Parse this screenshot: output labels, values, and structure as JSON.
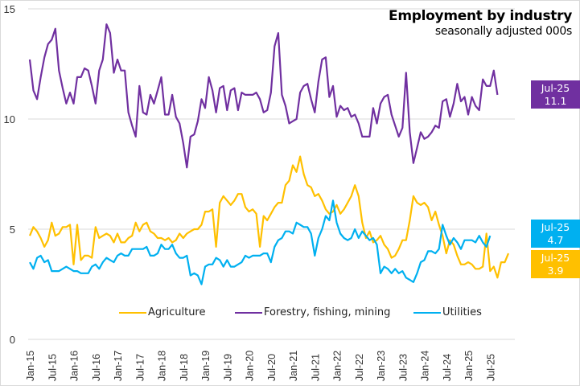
{
  "chart_data": {
    "type": "line",
    "title": "Employment by industry",
    "subtitle": "seasonally adjusted 000s",
    "xlabel": "",
    "ylabel": "",
    "ylim": [
      0,
      15
    ],
    "yticks": [
      0,
      5,
      10,
      15
    ],
    "grid": true,
    "legend_position": "bottom",
    "x_start": "Jan-15",
    "x_end": "Jul-25",
    "xtick_labels": [
      "Jan-15",
      "Jul-15",
      "Jan-16",
      "Jul-16",
      "Jan-17",
      "Jul-17",
      "Jan-18",
      "Jul-18",
      "Jan-19",
      "Jul-19",
      "Jan-20",
      "Jul-20",
      "Jan-21",
      "Jul-21",
      "Jan-22",
      "Jul-22",
      "Jan-23",
      "Jul-23",
      "Jan-24",
      "Jul-24",
      "Jan-25",
      "Jul-25"
    ],
    "series": [
      {
        "name": "Agriculture",
        "color": "#FFC000",
        "values": [
          4.7,
          5.1,
          4.9,
          4.6,
          4.2,
          4.5,
          5.3,
          4.7,
          4.8,
          5.1,
          5.1,
          5.2,
          3.4,
          5.2,
          3.6,
          3.8,
          3.8,
          3.7,
          5.1,
          4.6,
          4.7,
          4.8,
          4.7,
          4.4,
          4.8,
          4.4,
          4.4,
          4.6,
          4.7,
          5.3,
          4.9,
          5.2,
          5.3,
          4.9,
          4.8,
          4.6,
          4.6,
          4.5,
          4.6,
          4.4,
          4.5,
          4.8,
          4.6,
          4.8,
          4.9,
          5.0,
          5.0,
          5.2,
          5.8,
          5.8,
          5.9,
          4.2,
          6.2,
          6.5,
          6.3,
          6.1,
          6.3,
          6.6,
          6.6,
          6.0,
          5.8,
          5.9,
          5.7,
          4.2,
          5.6,
          5.4,
          5.7,
          6.0,
          6.2,
          6.2,
          7.0,
          7.2,
          7.9,
          7.6,
          8.3,
          7.5,
          7.0,
          6.9,
          6.5,
          6.6,
          6.3,
          5.9,
          5.7,
          5.8,
          6.1,
          5.7,
          5.9,
          6.2,
          6.5,
          7.0,
          6.5,
          5.3,
          4.6,
          4.9,
          4.4,
          4.5,
          4.7,
          4.3,
          4.1,
          3.7,
          3.8,
          4.1,
          4.5,
          4.5,
          5.4,
          6.5,
          6.2,
          6.1,
          6.2,
          6.0,
          5.4,
          5.8,
          5.2,
          4.7,
          3.9,
          4.5,
          4.3,
          3.8,
          3.4,
          3.4,
          3.5,
          3.4,
          3.2,
          3.2,
          3.3,
          4.8,
          3.1,
          3.3,
          2.8,
          3.5,
          3.5,
          3.9
        ]
      },
      {
        "name": "Forestry, fishing, mining",
        "color": "#7030A0",
        "values": [
          12.7,
          11.3,
          10.9,
          11.9,
          12.8,
          13.4,
          13.6,
          14.1,
          12.2,
          11.4,
          10.7,
          11.2,
          10.7,
          11.9,
          11.9,
          12.3,
          12.2,
          11.5,
          10.7,
          12.2,
          12.7,
          14.3,
          13.9,
          12.1,
          12.7,
          12.2,
          12.2,
          10.3,
          9.7,
          9.2,
          11.5,
          10.3,
          10.2,
          11.1,
          10.7,
          11.3,
          11.9,
          10.2,
          10.2,
          11.1,
          10.1,
          9.8,
          8.9,
          7.8,
          9.2,
          9.3,
          9.9,
          10.9,
          10.5,
          11.9,
          11.3,
          10.3,
          11.4,
          11.5,
          10.4,
          11.3,
          11.4,
          10.4,
          11.2,
          11.1,
          11.1,
          11.1,
          11.2,
          10.9,
          10.3,
          10.4,
          11.2,
          13.3,
          13.9,
          11.1,
          10.6,
          9.8,
          9.9,
          10.0,
          11.2,
          11.5,
          11.6,
          10.9,
          10.3,
          11.7,
          12.7,
          12.8,
          11.0,
          11.5,
          10.1,
          10.6,
          10.4,
          10.5,
          10.1,
          10.2,
          9.8,
          9.2,
          9.2,
          9.2,
          10.5,
          9.8,
          10.7,
          11.0,
          11.1,
          10.2,
          9.7,
          9.2,
          9.6,
          12.1,
          9.4,
          8.0,
          8.7,
          9.4,
          9.1,
          9.2,
          9.4,
          9.7,
          9.6,
          10.8,
          10.9,
          10.1,
          10.7,
          11.6,
          10.8,
          11.0,
          10.2,
          11.0,
          10.6,
          10.4,
          11.8,
          11.5,
          11.5,
          12.2,
          11.1
        ]
      },
      {
        "name": "Utilities",
        "color": "#00B0F0",
        "values": [
          3.5,
          3.2,
          3.7,
          3.8,
          3.5,
          3.6,
          3.1,
          3.1,
          3.1,
          3.2,
          3.3,
          3.2,
          3.1,
          3.1,
          3.0,
          3.0,
          3.0,
          3.3,
          3.4,
          3.2,
          3.5,
          3.7,
          3.6,
          3.5,
          3.8,
          3.9,
          3.8,
          3.8,
          4.1,
          4.1,
          4.1,
          4.1,
          4.2,
          3.8,
          3.8,
          3.9,
          4.3,
          4.1,
          4.1,
          4.3,
          3.9,
          3.7,
          3.7,
          3.8,
          2.9,
          3.0,
          2.9,
          2.5,
          3.3,
          3.4,
          3.4,
          3.7,
          3.6,
          3.3,
          3.6,
          3.3,
          3.3,
          3.4,
          3.5,
          3.8,
          3.7,
          3.8,
          3.8,
          3.8,
          3.9,
          3.9,
          3.5,
          4.2,
          4.5,
          4.6,
          4.9,
          4.9,
          4.8,
          5.3,
          5.2,
          5.1,
          5.1,
          4.8,
          3.8,
          4.6,
          5.0,
          5.6,
          5.4,
          6.3,
          5.3,
          4.8,
          4.6,
          4.5,
          4.6,
          5.0,
          4.6,
          4.9,
          4.7,
          4.5,
          4.6,
          4.3,
          3.0,
          3.3,
          3.2,
          3.0,
          3.2,
          3.0,
          3.1,
          2.8,
          2.7,
          2.6,
          3.0,
          3.5,
          3.6,
          4.0,
          4.0,
          3.9,
          4.1,
          5.2,
          4.7,
          4.3,
          4.6,
          4.4,
          4.1,
          4.5,
          4.5,
          4.5,
          4.4,
          4.7,
          4.4,
          4.2,
          4.7
        ]
      }
    ],
    "end_labels": [
      {
        "series": "Forestry, fishing, mining",
        "period": "Jul-25",
        "value": "11.1",
        "color": "#7030A0"
      },
      {
        "series": "Utilities",
        "period": "Jul-25",
        "value": "4.7",
        "color": "#00B0F0"
      },
      {
        "series": "Agriculture",
        "period": "Jul-25",
        "value": "3.9",
        "color": "#FFC000"
      }
    ]
  }
}
